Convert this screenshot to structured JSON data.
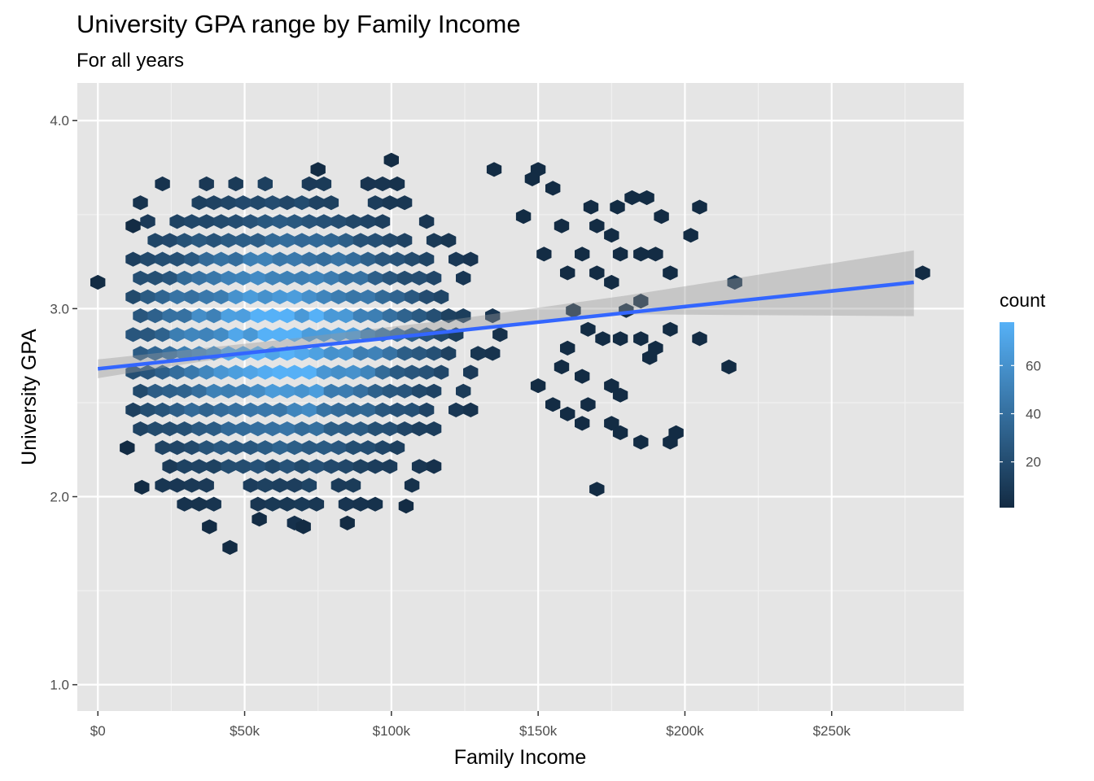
{
  "chart_data": {
    "type": "hexbin",
    "title": "University GPA range by Family Income",
    "subtitle": "For all years",
    "xlabel": "Family Income",
    "ylabel": "University GPA",
    "xlim": [
      -7000,
      295000
    ],
    "ylim": [
      0.86,
      4.2
    ],
    "x_ticks": [
      {
        "value": 0,
        "label": "$0"
      },
      {
        "value": 50000,
        "label": "$50k"
      },
      {
        "value": 100000,
        "label": "$100k"
      },
      {
        "value": 150000,
        "label": "$150k"
      },
      {
        "value": 200000,
        "label": "$200k"
      },
      {
        "value": 250000,
        "label": "$250k"
      }
    ],
    "y_ticks": [
      {
        "value": 1.0,
        "label": "1.0"
      },
      {
        "value": 2.0,
        "label": "2.0"
      },
      {
        "value": 3.0,
        "label": "3.0"
      },
      {
        "value": 4.0,
        "label": "4.0"
      }
    ],
    "panel_background": "#e5e5e5",
    "grid": true,
    "fill_scale": {
      "name": "count",
      "low": "#132b43",
      "high": "#56b1f7",
      "min": 1,
      "max": 78
    },
    "legend": {
      "title": "count",
      "position": "right",
      "breaks": [
        20,
        40,
        60
      ]
    },
    "hexbin_core": {
      "center": [
        62000,
        2.84
      ],
      "peak_count": 78,
      "sx": 32000,
      "sy": 0.42,
      "x_range": [
        12000,
        140000
      ],
      "y_range": [
        1.86,
        3.74
      ]
    },
    "sparse_points": [
      [
        0,
        3.14
      ],
      [
        10000,
        2.26
      ],
      [
        15000,
        2.05
      ],
      [
        12000,
        3.44
      ],
      [
        45000,
        1.73
      ],
      [
        38000,
        1.84
      ],
      [
        55000,
        1.88
      ],
      [
        70000,
        1.84
      ],
      [
        85000,
        1.86
      ],
      [
        105000,
        1.95
      ],
      [
        100000,
        3.79
      ],
      [
        75000,
        3.74
      ],
      [
        135000,
        3.74
      ],
      [
        150000,
        3.74
      ],
      [
        148000,
        3.69
      ],
      [
        155000,
        3.64
      ],
      [
        168000,
        3.54
      ],
      [
        177000,
        3.54
      ],
      [
        182000,
        3.59
      ],
      [
        187000,
        3.59
      ],
      [
        192000,
        3.49
      ],
      [
        205000,
        3.54
      ],
      [
        202000,
        3.39
      ],
      [
        170000,
        3.44
      ],
      [
        175000,
        3.39
      ],
      [
        178000,
        3.29
      ],
      [
        165000,
        3.29
      ],
      [
        160000,
        3.19
      ],
      [
        170000,
        3.19
      ],
      [
        175000,
        3.14
      ],
      [
        185000,
        3.29
      ],
      [
        190000,
        3.29
      ],
      [
        195000,
        3.19
      ],
      [
        185000,
        3.04
      ],
      [
        180000,
        2.99
      ],
      [
        167000,
        2.89
      ],
      [
        172000,
        2.84
      ],
      [
        178000,
        2.84
      ],
      [
        185000,
        2.84
      ],
      [
        190000,
        2.79
      ],
      [
        195000,
        2.89
      ],
      [
        205000,
        2.84
      ],
      [
        188000,
        2.74
      ],
      [
        215000,
        2.69
      ],
      [
        165000,
        2.64
      ],
      [
        175000,
        2.59
      ],
      [
        178000,
        2.54
      ],
      [
        167000,
        2.49
      ],
      [
        160000,
        2.44
      ],
      [
        165000,
        2.39
      ],
      [
        175000,
        2.39
      ],
      [
        178000,
        2.34
      ],
      [
        185000,
        2.29
      ],
      [
        195000,
        2.29
      ],
      [
        197000,
        2.34
      ],
      [
        170000,
        2.04
      ],
      [
        217000,
        3.14
      ],
      [
        150000,
        2.59
      ],
      [
        155000,
        2.49
      ],
      [
        158000,
        2.69
      ],
      [
        160000,
        2.79
      ],
      [
        162000,
        2.99
      ],
      [
        145000,
        3.49
      ],
      [
        152000,
        3.29
      ],
      [
        158000,
        3.44
      ],
      [
        281000,
        3.19
      ]
    ],
    "holes": [
      [
        83000,
        3.54
      ],
      [
        103000,
        3.49
      ],
      [
        118000,
        2.44
      ],
      [
        145000,
        3.04
      ],
      [
        150000,
        2.94
      ],
      [
        128000,
        2.99
      ]
    ],
    "regression": {
      "x": [
        0,
        278000
      ],
      "y": [
        2.68,
        3.14
      ],
      "se_band": [
        {
          "x": 0,
          "ymin": 2.63,
          "ymax": 2.73
        },
        {
          "x": 60000,
          "ymin": 2.78,
          "ymax": 2.83
        },
        {
          "x": 120000,
          "ymin": 2.89,
          "ymax": 2.94
        },
        {
          "x": 180000,
          "ymin": 2.97,
          "ymax": 3.07
        },
        {
          "x": 278000,
          "ymin": 2.96,
          "ymax": 3.31
        }
      ],
      "line_color": "#3366ff",
      "band_color": "#999999"
    }
  }
}
